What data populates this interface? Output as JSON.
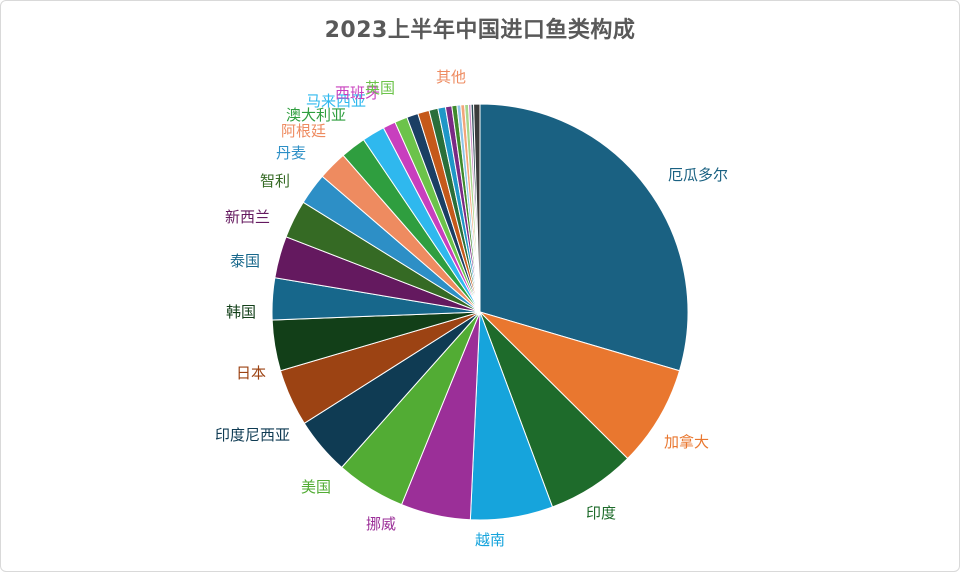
{
  "chart_data": {
    "type": "pie",
    "title": "2023上半年中国进口鱼类构成",
    "slices": [
      {
        "label": "厄瓜多尔",
        "value": 30.0,
        "color": "#1a6182"
      },
      {
        "label": "加拿大",
        "value": 8.0,
        "color": "#e9772f"
      },
      {
        "label": "印度",
        "value": 7.0,
        "color": "#1e6b2b"
      },
      {
        "label": "越南",
        "value": 6.5,
        "color": "#16a4dc"
      },
      {
        "label": "挪威",
        "value": 5.5,
        "color": "#9b2f98"
      },
      {
        "label": "美国",
        "value": 5.5,
        "color": "#52ac34"
      },
      {
        "label": "印度尼西亚",
        "value": 4.5,
        "color": "#0f3b53"
      },
      {
        "label": "日本",
        "value": 4.5,
        "color": "#9c4313"
      },
      {
        "label": "韩国",
        "value": 4.0,
        "color": "#123f18"
      },
      {
        "label": "泰国",
        "value": 3.3,
        "color": "#17678b"
      },
      {
        "label": "新西兰",
        "value": 3.3,
        "color": "#64195f"
      },
      {
        "label": "智利",
        "value": 3.0,
        "color": "#356a24"
      },
      {
        "label": "丹麦",
        "value": 2.5,
        "color": "#2d8fc6"
      },
      {
        "label": "阿根廷",
        "value": 2.3,
        "color": "#ee8b60"
      },
      {
        "label": "澳大利亚",
        "value": 2.0,
        "color": "#2f9e3f"
      },
      {
        "label": "马来西亚",
        "value": 1.8,
        "color": "#2fb8ee"
      },
      {
        "label": "西班牙",
        "value": 1.0,
        "color": "#c83fbe"
      },
      {
        "label": "英国",
        "value": 1.0,
        "color": "#6cc34a"
      },
      {
        "label": "",
        "value": 0.9,
        "color": "#1b3f64"
      },
      {
        "label": "",
        "value": 0.9,
        "color": "#c5591a"
      },
      {
        "label": "",
        "value": 0.7,
        "color": "#2a6f3a"
      },
      {
        "label": "",
        "value": 0.6,
        "color": "#1f97c7"
      },
      {
        "label": "",
        "value": 0.5,
        "color": "#7a2a84"
      },
      {
        "label": "",
        "value": 0.4,
        "color": "#3f8a2c"
      },
      {
        "label": "",
        "value": 0.3,
        "color": "#8ec5e8"
      },
      {
        "label": "",
        "value": 0.3,
        "color": "#f2a57a"
      },
      {
        "label": "",
        "value": 0.3,
        "color": "#a6d68c"
      },
      {
        "label": "",
        "value": 0.2,
        "color": "#c98ec4"
      },
      {
        "label": "",
        "value": 0.2,
        "color": "#2b4a55"
      },
      {
        "label": "其他",
        "value": 0.5,
        "color": "#3b3b3b"
      }
    ],
    "label_colors": {
      "厄瓜多尔": "#1a6182",
      "加拿大": "#e9772f",
      "印度": "#1e6b2b",
      "越南": "#16a4dc",
      "挪威": "#9b2f98",
      "美国": "#52ac34",
      "印度尼西亚": "#0f3b53",
      "日本": "#9c4313",
      "韩国": "#123f18",
      "泰国": "#17678b",
      "新西兰": "#64195f",
      "智利": "#356a24",
      "丹麦": "#2d8fc6",
      "阿根廷": "#ee8b60",
      "澳大利亚": "#2f9e3f",
      "马来西亚": "#2fb8ee",
      "西班牙": "#c83fbe",
      "英国": "#6cc34a",
      "其他": "#ee8b60"
    },
    "legend": "none",
    "labels": "outside"
  }
}
